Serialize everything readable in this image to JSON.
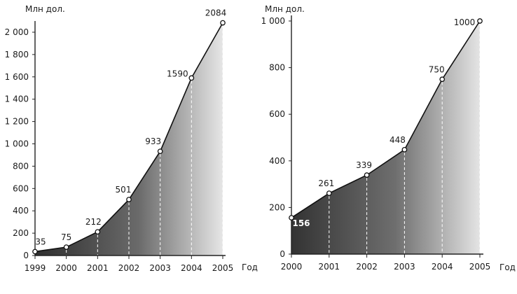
{
  "chart_data": [
    {
      "type": "area",
      "ylabel": "Млн дол.",
      "xlabel": "Год",
      "x": [
        "1999",
        "2000",
        "2001",
        "2002",
        "2003",
        "2004",
        "2005"
      ],
      "values": [
        35,
        75,
        212,
        501,
        933,
        1590,
        2084
      ],
      "value_labels": [
        "35",
        "75",
        "212",
        "501",
        "933",
        "1590",
        "2084"
      ],
      "ylim": [
        0,
        2100
      ],
      "yticks": [
        0,
        200,
        400,
        600,
        800,
        1000,
        1200,
        1400,
        1600,
        1800,
        2000
      ],
      "ytick_labels": [
        "0",
        "200",
        "400",
        "600",
        "800",
        "1 000",
        "1 200",
        "1 400",
        "1 600",
        "1 800",
        "2 000"
      ],
      "grid": false
    },
    {
      "type": "area",
      "ylabel": "Млн дол.",
      "xlabel": "Год",
      "x": [
        "2000",
        "2001",
        "2002",
        "2003",
        "2004",
        "2005"
      ],
      "values": [
        156,
        261,
        339,
        448,
        750,
        1000
      ],
      "value_labels": [
        "156",
        "261",
        "339",
        "448",
        "750",
        "1000"
      ],
      "ylim": [
        0,
        1000
      ],
      "yticks": [
        0,
        200,
        400,
        600,
        800,
        1000
      ],
      "ytick_labels": [
        "0",
        "200",
        "400",
        "600",
        "800",
        "1 000"
      ],
      "grid": false
    }
  ]
}
